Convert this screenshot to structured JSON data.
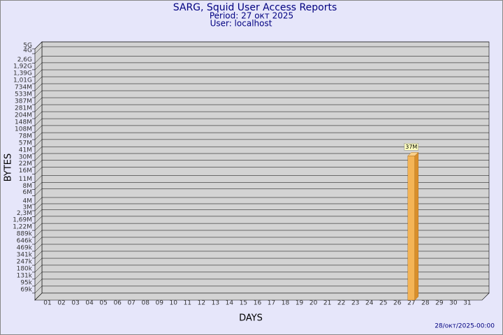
{
  "chart_data": {
    "type": "bar",
    "title": "SARG, Squid User Access Reports",
    "subtitle": [
      "Period: 27 окт 2025",
      "User: localhost"
    ],
    "x_label": "DAYS",
    "y_label": "BYTES",
    "footer": "28/окт/2025-00:00",
    "categories": [
      "01",
      "02",
      "03",
      "04",
      "05",
      "06",
      "07",
      "08",
      "09",
      "10",
      "11",
      "12",
      "13",
      "14",
      "15",
      "16",
      "17",
      "18",
      "19",
      "20",
      "21",
      "22",
      "23",
      "24",
      "25",
      "26",
      "27",
      "28",
      "29",
      "30",
      "31"
    ],
    "values": [
      null,
      null,
      null,
      null,
      null,
      null,
      null,
      null,
      null,
      null,
      null,
      null,
      null,
      null,
      null,
      null,
      null,
      null,
      null,
      null,
      null,
      null,
      null,
      null,
      null,
      null,
      37000000,
      null,
      null,
      null,
      null
    ],
    "value_labels": [
      null,
      null,
      null,
      null,
      null,
      null,
      null,
      null,
      null,
      null,
      null,
      null,
      null,
      null,
      null,
      null,
      null,
      null,
      null,
      null,
      null,
      null,
      null,
      null,
      null,
      null,
      "37M",
      null,
      null,
      null,
      null
    ],
    "color": "#f4b456",
    "log_scale": true,
    "grid": true,
    "ylim": [
      50000,
      5000000000
    ],
    "yticks": [
      {
        "value": 69000,
        "label": "69k"
      },
      {
        "value": 95000,
        "label": "95k"
      },
      {
        "value": 131000,
        "label": "131k"
      },
      {
        "value": 180000,
        "label": "180k"
      },
      {
        "value": 247000,
        "label": "247k"
      },
      {
        "value": 341000,
        "label": "341k"
      },
      {
        "value": 469000,
        "label": "469k"
      },
      {
        "value": 646000,
        "label": "646k"
      },
      {
        "value": 889000,
        "label": "889k"
      },
      {
        "value": 1220000,
        "label": "1,22M"
      },
      {
        "value": 1690000,
        "label": "1,69M"
      },
      {
        "value": 2300000,
        "label": "2,3M"
      },
      {
        "value": 3000000,
        "label": "3M"
      },
      {
        "value": 4000000,
        "label": "4M"
      },
      {
        "value": 6000000,
        "label": "6M"
      },
      {
        "value": 8000000,
        "label": "8M"
      },
      {
        "value": 11000000,
        "label": "11M"
      },
      {
        "value": 16000000,
        "label": "16M"
      },
      {
        "value": 22000000,
        "label": "22M"
      },
      {
        "value": 30000000,
        "label": "30M"
      },
      {
        "value": 41000000,
        "label": "41M"
      },
      {
        "value": 57000000,
        "label": "57M"
      },
      {
        "value": 78000000,
        "label": "78M"
      },
      {
        "value": 108000000,
        "label": "108M"
      },
      {
        "value": 148000000,
        "label": "148M"
      },
      {
        "value": 204000000,
        "label": "204M"
      },
      {
        "value": 281000000,
        "label": "281M"
      },
      {
        "value": 387000000,
        "label": "387M"
      },
      {
        "value": 533000000,
        "label": "533M"
      },
      {
        "value": 734000000,
        "label": "734M"
      },
      {
        "value": 1010000000,
        "label": "1,01G"
      },
      {
        "value": 1390000000,
        "label": "1,39G"
      },
      {
        "value": 1920000000,
        "label": "1,92G"
      },
      {
        "value": 2600000000,
        "label": "2,6G"
      },
      {
        "value": 4000000000,
        "label": "4G"
      },
      {
        "value": 5000000000,
        "label": "5G"
      }
    ]
  }
}
